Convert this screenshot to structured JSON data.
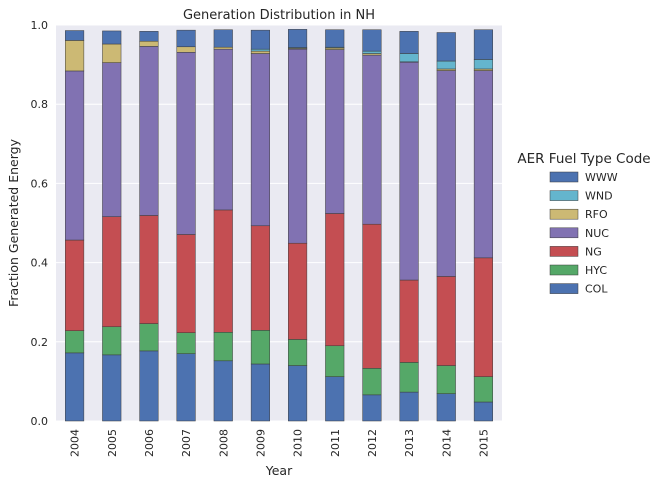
{
  "chart_data": {
    "type": "bar",
    "stacked": true,
    "title": "Generation Distribution in NH",
    "xlabel": "Year",
    "ylabel": "Fraction Generated Energy",
    "ylim": [
      0.0,
      1.0
    ],
    "yticks": [
      "0.0",
      "0.2",
      "0.4",
      "0.6",
      "0.8",
      "1.0"
    ],
    "grid": true,
    "legend": {
      "title": "AER Fuel Type Code",
      "placement": "right"
    },
    "categories": [
      "2004",
      "2005",
      "2006",
      "2007",
      "2008",
      "2009",
      "2010",
      "2011",
      "2012",
      "2013",
      "2014",
      "2015"
    ],
    "series": [
      {
        "name": "COL",
        "color": "#4c72b0",
        "values": [
          0.172,
          0.167,
          0.177,
          0.17,
          0.152,
          0.144,
          0.14,
          0.112,
          0.066,
          0.073,
          0.069,
          0.048
        ]
      },
      {
        "name": "HYC",
        "color": "#55a868",
        "values": [
          0.056,
          0.071,
          0.069,
          0.053,
          0.072,
          0.085,
          0.066,
          0.078,
          0.067,
          0.075,
          0.071,
          0.064
        ]
      },
      {
        "name": "NG",
        "color": "#c44e52",
        "values": [
          0.229,
          0.278,
          0.273,
          0.248,
          0.309,
          0.264,
          0.243,
          0.334,
          0.364,
          0.208,
          0.225,
          0.3
        ]
      },
      {
        "name": "NUC",
        "color": "#8172b2",
        "values": [
          0.427,
          0.389,
          0.427,
          0.46,
          0.406,
          0.435,
          0.49,
          0.414,
          0.427,
          0.55,
          0.52,
          0.473
        ]
      },
      {
        "name": "RFO",
        "color": "#ccb974",
        "values": [
          0.077,
          0.047,
          0.013,
          0.014,
          0.005,
          0.006,
          0.002,
          0.004,
          0.004,
          0.001,
          0.004,
          0.004
        ]
      },
      {
        "name": "WND",
        "color": "#64b5cd",
        "values": [
          0.0,
          0.0,
          0.0,
          0.0,
          0.0,
          0.005,
          0.002,
          0.002,
          0.006,
          0.021,
          0.02,
          0.024
        ]
      },
      {
        "name": "WWW",
        "color": "#4c72b0",
        "values": [
          0.025,
          0.033,
          0.025,
          0.042,
          0.044,
          0.048,
          0.046,
          0.044,
          0.054,
          0.056,
          0.072,
          0.075
        ]
      }
    ],
    "legend_order": [
      "WWW",
      "WND",
      "RFO",
      "NUC",
      "NG",
      "HYC",
      "COL"
    ]
  }
}
